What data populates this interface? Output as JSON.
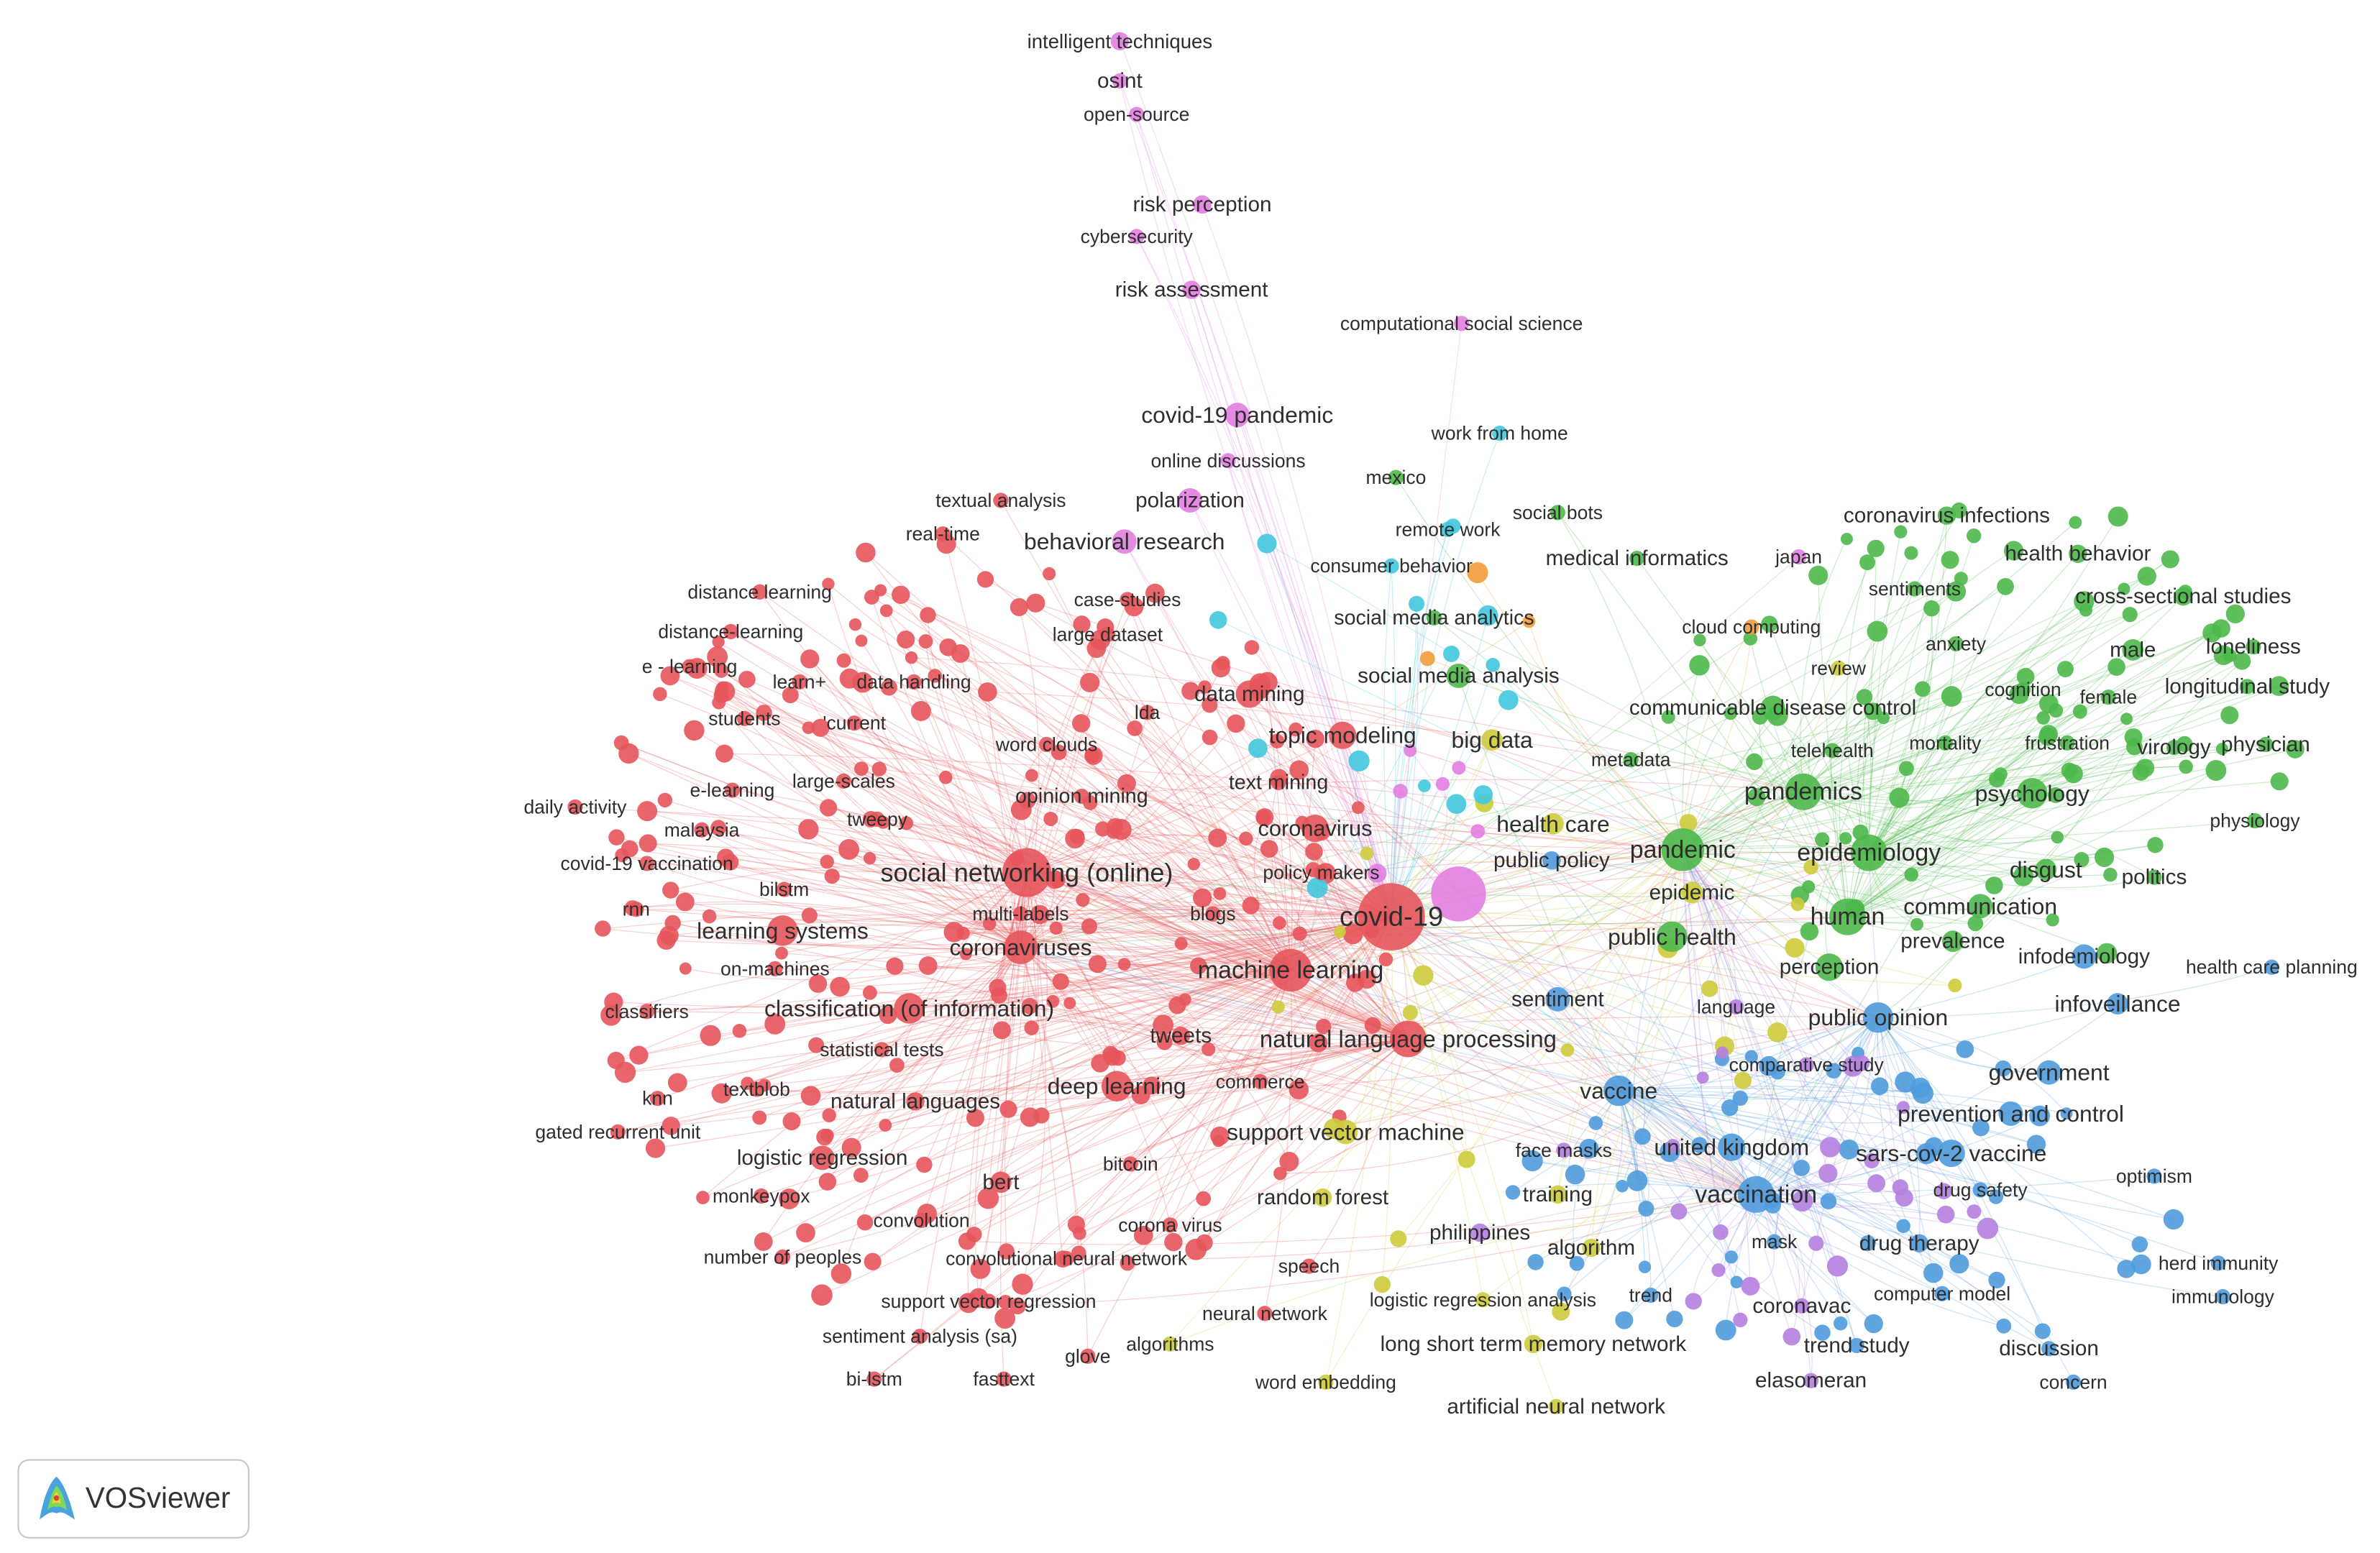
{
  "clusters": [
    {
      "color": "#e6555b",
      "nodes": [
        "textual analysis",
        "real-time",
        "distance learning",
        "distance-learning",
        "e - learning",
        "learn+",
        "data handling",
        "students",
        "'current",
        "case-studies",
        "large dataset",
        "lda",
        "data mining",
        "word clouds",
        "topic modeling",
        "e-learning",
        "large-scales",
        "opinion mining",
        "text mining",
        "daily activity",
        "malaysia",
        "tweepy",
        "coronavirus",
        "covid-19 vaccination",
        "social networking (online)",
        "policy makers",
        "bilstm",
        "rnn",
        "multi-labels",
        "blogs",
        "covid-19",
        "learning systems",
        "coronaviruses",
        "on-machines",
        "machine learning",
        "classifiers",
        "classification (of information)",
        "tweets",
        "statistical tests",
        "natural language processing",
        "textblob",
        "deep learning",
        "commerce",
        "natural languages",
        "knn",
        "gated recurrent unit",
        "logistic regression",
        "bitcoin",
        "bert",
        "monkeypox",
        "corona virus",
        "convolution",
        "number of peoples",
        "convolutional neural network",
        "speech",
        "support vector regression",
        "neural network",
        "sentiment analysis (sa)",
        "glove",
        "bi-lstm",
        "fasttext"
      ]
    },
    {
      "color": "#4db84a",
      "nodes": [
        "mexico",
        "social bots",
        "medical informatics",
        "coronavirus infections",
        "health behavior",
        "sentiments",
        "cross-sectional studies",
        "social media analytics",
        "anxiety",
        "male",
        "loneliness",
        "communicable disease control",
        "female",
        "longitudinal study",
        "telehealth",
        "mortality",
        "frustration",
        "virology",
        "physician",
        "cognition",
        "social media analysis",
        "metadata",
        "pandemics",
        "psychology",
        "physiology",
        "pandemic",
        "epidemiology",
        "disgust",
        "politics",
        "human",
        "communication",
        "public health",
        "prevalence",
        "perception"
      ]
    },
    {
      "color": "#4f9bdb",
      "nodes": [
        "public policy",
        "infodemiology",
        "health care planning",
        "infoveillance",
        "sentiment",
        "public opinion",
        "government",
        "vaccine",
        "prevention and control",
        "united kingdom",
        "sars-cov-2 vaccine",
        "optimism",
        "drug safety",
        "vaccination",
        "mask",
        "drug therapy",
        "herd immunity",
        "immunology",
        "trend",
        "computer model",
        "trend study",
        "discussion",
        "concern"
      ]
    },
    {
      "color": "#cfcb3c",
      "nodes": [
        "big data",
        "health care",
        "epidemic",
        "review",
        "support vector machine",
        "random forest",
        "training",
        "algorithm",
        "logistic regression analysis",
        "long short term memory network",
        "word embedding",
        "artificial neural network",
        "algorithms"
      ]
    },
    {
      "color": "#b580e0",
      "nodes": [
        "language",
        "comparative study",
        "face masks",
        "philippines",
        "coronavac",
        "elasomeran"
      ]
    },
    {
      "color": "#42c8de",
      "nodes": [
        "work from home",
        "remote work",
        "consumer behavior"
      ]
    },
    {
      "color": "#e27ee0",
      "nodes": [
        "intelligent techniques",
        "osint",
        "open-source",
        "risk perception",
        "cybersecurity",
        "risk assessment",
        "computational social science",
        "covid-19 pandemic",
        "online discussions",
        "polarization",
        "behavioral research",
        "japan"
      ]
    },
    {
      "color": "#f39c3a",
      "nodes": [
        "cloud computing"
      ]
    }
  ],
  "logo": {
    "text": "VOSviewer"
  }
}
